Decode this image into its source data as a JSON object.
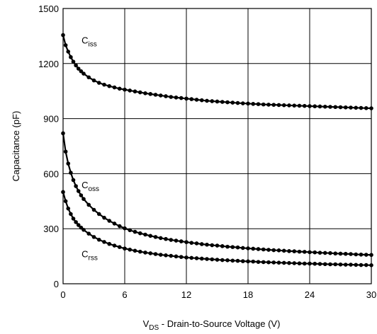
{
  "chart_data": {
    "type": "line",
    "title": "",
    "xlabel": {
      "main": "V",
      "sub": "DS",
      "rest": " - Drain-to-Source Voltage (V)"
    },
    "ylabel": "Capacitance (pF)",
    "xlim": [
      0,
      30
    ],
    "ylim": [
      0,
      1500
    ],
    "xticks": [
      0,
      6,
      12,
      18,
      24,
      30
    ],
    "yticks": [
      0,
      300,
      600,
      900,
      1200,
      1500
    ],
    "x_tick_labels": [
      "0",
      "6",
      "12",
      "18",
      "24",
      "30"
    ],
    "y_tick_labels": [
      "0",
      "300",
      "600",
      "900",
      "1200",
      "1500"
    ],
    "grid": true,
    "colors": {
      "line": "#000000",
      "marker": "#000000",
      "grid": "#000000"
    },
    "series": [
      {
        "name": "Ciss",
        "label": {
          "main": "C",
          "sub": "iss"
        },
        "label_at": [
          1.8,
          1310
        ],
        "x": [
          0,
          0.25,
          0.5,
          0.75,
          1,
          1.25,
          1.5,
          1.75,
          2,
          2.5,
          3,
          3.5,
          4,
          4.5,
          5,
          5.5,
          6,
          6.5,
          7,
          7.5,
          8,
          8.5,
          9,
          9.5,
          10,
          10.5,
          11,
          11.5,
          12,
          12.5,
          13,
          13.5,
          14,
          14.5,
          15,
          15.5,
          16,
          16.5,
          17,
          17.5,
          18,
          18.5,
          19,
          19.5,
          20,
          20.5,
          21,
          21.5,
          22,
          22.5,
          23,
          23.5,
          24,
          24.5,
          25,
          25.5,
          26,
          26.5,
          27,
          27.5,
          28,
          28.5,
          29,
          29.5,
          30
        ],
        "values": [
          1355,
          1300,
          1265,
          1235,
          1210,
          1190,
          1172,
          1158,
          1145,
          1125,
          1108,
          1095,
          1085,
          1077,
          1070,
          1063,
          1058,
          1053,
          1048,
          1043,
          1038,
          1034,
          1030,
          1026,
          1022,
          1018,
          1015,
          1012,
          1009,
          1006,
          1003,
          1000,
          997,
          995,
          993,
          991,
          989,
          987,
          985,
          983,
          982,
          980,
          979,
          977,
          976,
          975,
          974,
          973,
          972,
          971,
          970,
          969,
          968,
          967,
          966,
          965,
          964,
          963,
          962,
          961,
          960,
          959,
          958,
          957,
          956
        ]
      },
      {
        "name": "Coss",
        "label": {
          "main": "C",
          "sub": "oss"
        },
        "label_at": [
          1.8,
          520
        ],
        "x": [
          0,
          0.25,
          0.5,
          0.75,
          1,
          1.25,
          1.5,
          1.75,
          2,
          2.5,
          3,
          3.5,
          4,
          4.5,
          5,
          5.5,
          6,
          6.5,
          7,
          7.5,
          8,
          8.5,
          9,
          9.5,
          10,
          10.5,
          11,
          11.5,
          12,
          12.5,
          13,
          13.5,
          14,
          14.5,
          15,
          15.5,
          16,
          16.5,
          17,
          17.5,
          18,
          18.5,
          19,
          19.5,
          20,
          20.5,
          21,
          21.5,
          22,
          22.5,
          23,
          23.5,
          24,
          24.5,
          25,
          25.5,
          26,
          26.5,
          27,
          27.5,
          28,
          28.5,
          29,
          29.5,
          30
        ],
        "values": [
          820,
          720,
          655,
          605,
          565,
          532,
          505,
          482,
          462,
          430,
          403,
          380,
          360,
          343,
          328,
          314,
          302,
          292,
          283,
          275,
          268,
          261,
          255,
          249,
          244,
          239,
          235,
          231,
          227,
          223,
          220,
          216,
          213,
          210,
          208,
          205,
          202,
          200,
          198,
          195,
          193,
          191,
          189,
          187,
          185,
          183,
          182,
          180,
          178,
          177,
          175,
          174,
          172,
          171,
          169,
          168,
          167,
          165,
          164,
          163,
          162,
          160,
          159,
          158,
          157
        ]
      },
      {
        "name": "Crss",
        "label": {
          "main": "C",
          "sub": "rss"
        },
        "label_at": [
          1.8,
          145
        ],
        "x": [
          0,
          0.25,
          0.5,
          0.75,
          1,
          1.25,
          1.5,
          1.75,
          2,
          2.5,
          3,
          3.5,
          4,
          4.5,
          5,
          5.5,
          6,
          6.5,
          7,
          7.5,
          8,
          8.5,
          9,
          9.5,
          10,
          10.5,
          11,
          11.5,
          12,
          12.5,
          13,
          13.5,
          14,
          14.5,
          15,
          15.5,
          16,
          16.5,
          17,
          17.5,
          18,
          18.5,
          19,
          19.5,
          20,
          20.5,
          21,
          21.5,
          22,
          22.5,
          23,
          23.5,
          24,
          24.5,
          25,
          25.5,
          26,
          26.5,
          27,
          27.5,
          28,
          28.5,
          29,
          29.5,
          30
        ],
        "values": [
          500,
          450,
          410,
          380,
          355,
          336,
          320,
          306,
          294,
          273,
          255,
          240,
          228,
          217,
          208,
          200,
          192,
          186,
          180,
          175,
          170,
          166,
          162,
          158,
          155,
          152,
          149,
          146,
          143,
          141,
          139,
          137,
          135,
          133,
          131,
          129,
          128,
          126,
          125,
          123,
          122,
          121,
          119,
          118,
          117,
          116,
          115,
          114,
          113,
          112,
          111,
          110,
          110,
          109,
          108,
          107,
          106,
          106,
          105,
          104,
          104,
          103,
          102,
          102,
          101
        ]
      }
    ]
  }
}
